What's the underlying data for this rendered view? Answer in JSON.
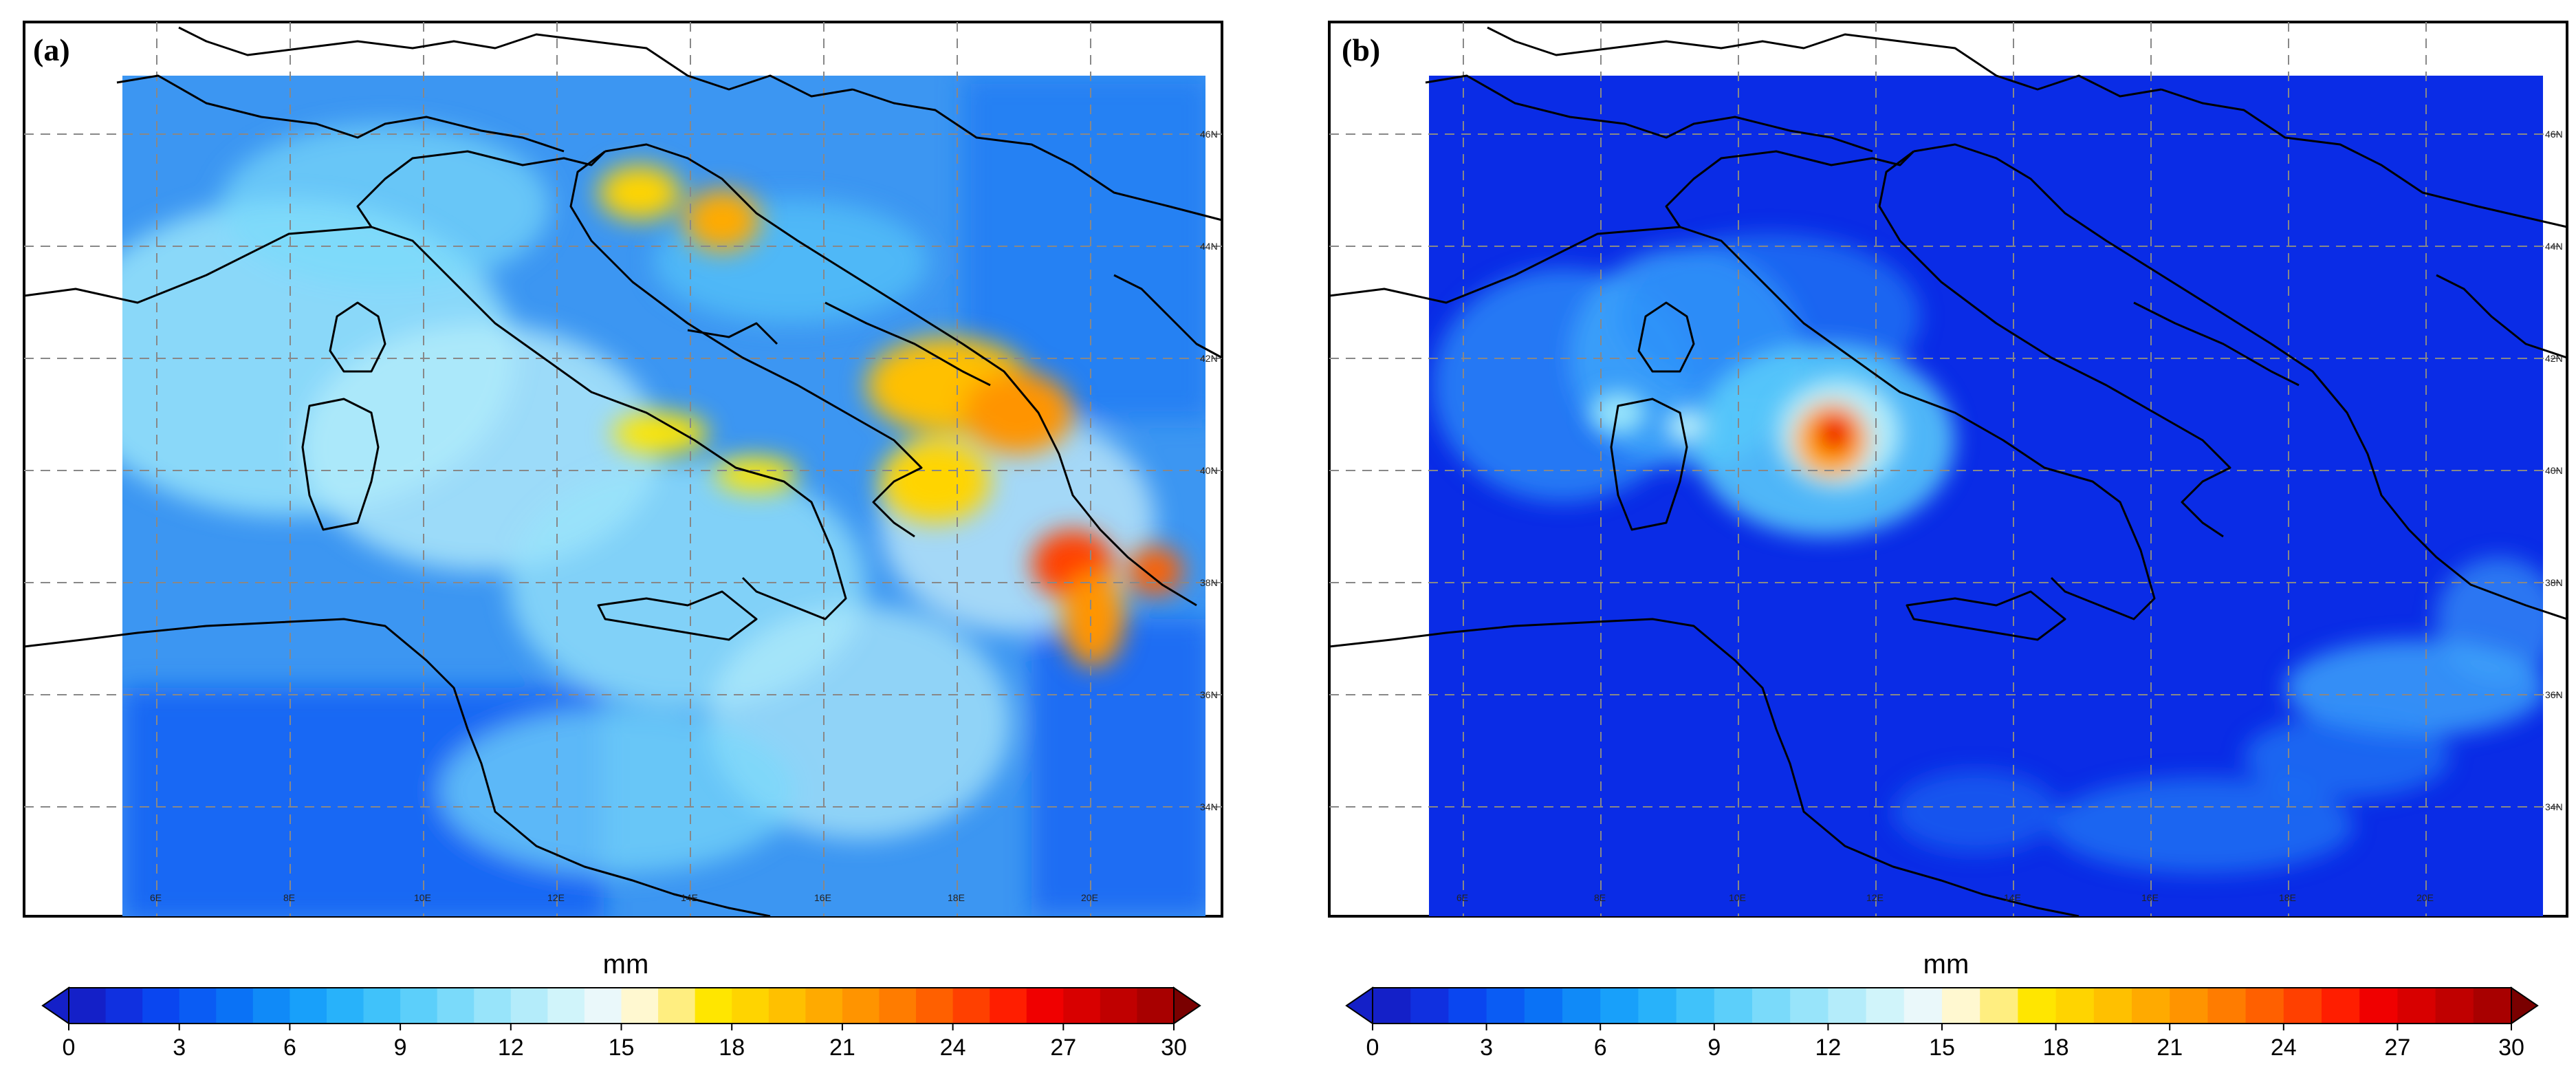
{
  "panels": [
    {
      "label": "(a)",
      "style": "wide",
      "lat_labels": [
        "46N",
        "44N",
        "42N",
        "40N",
        "38N",
        "36N",
        "34N"
      ],
      "lon_labels": [
        "6E",
        "8E",
        "10E",
        "12E",
        "14E",
        "16E",
        "18E",
        "20E"
      ],
      "colorbar": {
        "unit": "mm",
        "min": 0,
        "max": 30,
        "tick_labels": [
          "0",
          "3",
          "6",
          "9",
          "12",
          "15",
          "18",
          "21",
          "24",
          "27",
          "30"
        ]
      }
    },
    {
      "label": "(b)",
      "style": "narrow",
      "lat_labels": [
        "46N",
        "44N",
        "42N",
        "40N",
        "38N",
        "36N",
        "34N"
      ],
      "lon_labels": [
        "6E",
        "8E",
        "10E",
        "12E",
        "14E",
        "16E",
        "18E",
        "20E"
      ],
      "colorbar": {
        "unit": "mm",
        "min": 0,
        "max": 30,
        "tick_labels": [
          "0",
          "3",
          "6",
          "9",
          "12",
          "15",
          "18",
          "21",
          "24",
          "27",
          "30"
        ]
      }
    }
  ],
  "colormap": [
    "#1420c8",
    "#1030e0",
    "#0a46f0",
    "#0a5cf4",
    "#0a72f6",
    "#108af8",
    "#18a0fa",
    "#28b2fa",
    "#40c2fa",
    "#5ccffa",
    "#7adafa",
    "#98e4fa",
    "#b4ecfa",
    "#d0f4fa",
    "#eaf8fa",
    "#fff8d0",
    "#ffee80",
    "#ffe600",
    "#ffd400",
    "#ffc000",
    "#ffaa00",
    "#ff9400",
    "#ff7c00",
    "#ff6000",
    "#ff4000",
    "#ff1e00",
    "#f00000",
    "#d80000",
    "#c00000",
    "#a80000"
  ]
}
